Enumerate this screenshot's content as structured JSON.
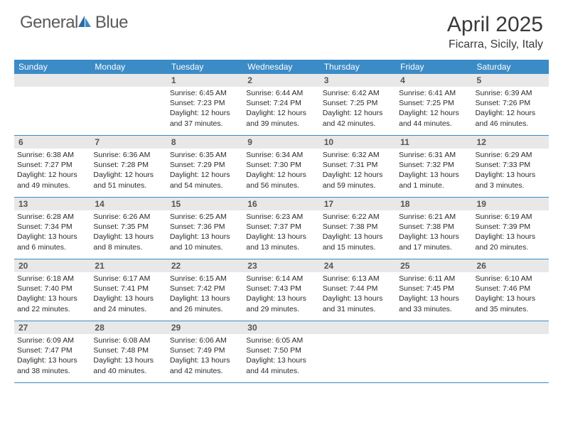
{
  "logo": {
    "text1": "General",
    "text2": "Blue"
  },
  "title": "April 2025",
  "location": "Ficarra, Sicily, Italy",
  "colors": {
    "header_bg": "#3b8bc6",
    "daynum_bg": "#e8e8e8",
    "text": "#2a2a2a",
    "logo_gray": "#5a5a5a"
  },
  "weekdays": [
    "Sunday",
    "Monday",
    "Tuesday",
    "Wednesday",
    "Thursday",
    "Friday",
    "Saturday"
  ],
  "weeks": [
    [
      {
        "empty": true
      },
      {
        "empty": true
      },
      {
        "num": "1",
        "sunrise": "Sunrise: 6:45 AM",
        "sunset": "Sunset: 7:23 PM",
        "daylight": "Daylight: 12 hours and 37 minutes."
      },
      {
        "num": "2",
        "sunrise": "Sunrise: 6:44 AM",
        "sunset": "Sunset: 7:24 PM",
        "daylight": "Daylight: 12 hours and 39 minutes."
      },
      {
        "num": "3",
        "sunrise": "Sunrise: 6:42 AM",
        "sunset": "Sunset: 7:25 PM",
        "daylight": "Daylight: 12 hours and 42 minutes."
      },
      {
        "num": "4",
        "sunrise": "Sunrise: 6:41 AM",
        "sunset": "Sunset: 7:25 PM",
        "daylight": "Daylight: 12 hours and 44 minutes."
      },
      {
        "num": "5",
        "sunrise": "Sunrise: 6:39 AM",
        "sunset": "Sunset: 7:26 PM",
        "daylight": "Daylight: 12 hours and 46 minutes."
      }
    ],
    [
      {
        "num": "6",
        "sunrise": "Sunrise: 6:38 AM",
        "sunset": "Sunset: 7:27 PM",
        "daylight": "Daylight: 12 hours and 49 minutes."
      },
      {
        "num": "7",
        "sunrise": "Sunrise: 6:36 AM",
        "sunset": "Sunset: 7:28 PM",
        "daylight": "Daylight: 12 hours and 51 minutes."
      },
      {
        "num": "8",
        "sunrise": "Sunrise: 6:35 AM",
        "sunset": "Sunset: 7:29 PM",
        "daylight": "Daylight: 12 hours and 54 minutes."
      },
      {
        "num": "9",
        "sunrise": "Sunrise: 6:34 AM",
        "sunset": "Sunset: 7:30 PM",
        "daylight": "Daylight: 12 hours and 56 minutes."
      },
      {
        "num": "10",
        "sunrise": "Sunrise: 6:32 AM",
        "sunset": "Sunset: 7:31 PM",
        "daylight": "Daylight: 12 hours and 59 minutes."
      },
      {
        "num": "11",
        "sunrise": "Sunrise: 6:31 AM",
        "sunset": "Sunset: 7:32 PM",
        "daylight": "Daylight: 13 hours and 1 minute."
      },
      {
        "num": "12",
        "sunrise": "Sunrise: 6:29 AM",
        "sunset": "Sunset: 7:33 PM",
        "daylight": "Daylight: 13 hours and 3 minutes."
      }
    ],
    [
      {
        "num": "13",
        "sunrise": "Sunrise: 6:28 AM",
        "sunset": "Sunset: 7:34 PM",
        "daylight": "Daylight: 13 hours and 6 minutes."
      },
      {
        "num": "14",
        "sunrise": "Sunrise: 6:26 AM",
        "sunset": "Sunset: 7:35 PM",
        "daylight": "Daylight: 13 hours and 8 minutes."
      },
      {
        "num": "15",
        "sunrise": "Sunrise: 6:25 AM",
        "sunset": "Sunset: 7:36 PM",
        "daylight": "Daylight: 13 hours and 10 minutes."
      },
      {
        "num": "16",
        "sunrise": "Sunrise: 6:23 AM",
        "sunset": "Sunset: 7:37 PM",
        "daylight": "Daylight: 13 hours and 13 minutes."
      },
      {
        "num": "17",
        "sunrise": "Sunrise: 6:22 AM",
        "sunset": "Sunset: 7:38 PM",
        "daylight": "Daylight: 13 hours and 15 minutes."
      },
      {
        "num": "18",
        "sunrise": "Sunrise: 6:21 AM",
        "sunset": "Sunset: 7:38 PM",
        "daylight": "Daylight: 13 hours and 17 minutes."
      },
      {
        "num": "19",
        "sunrise": "Sunrise: 6:19 AM",
        "sunset": "Sunset: 7:39 PM",
        "daylight": "Daylight: 13 hours and 20 minutes."
      }
    ],
    [
      {
        "num": "20",
        "sunrise": "Sunrise: 6:18 AM",
        "sunset": "Sunset: 7:40 PM",
        "daylight": "Daylight: 13 hours and 22 minutes."
      },
      {
        "num": "21",
        "sunrise": "Sunrise: 6:17 AM",
        "sunset": "Sunset: 7:41 PM",
        "daylight": "Daylight: 13 hours and 24 minutes."
      },
      {
        "num": "22",
        "sunrise": "Sunrise: 6:15 AM",
        "sunset": "Sunset: 7:42 PM",
        "daylight": "Daylight: 13 hours and 26 minutes."
      },
      {
        "num": "23",
        "sunrise": "Sunrise: 6:14 AM",
        "sunset": "Sunset: 7:43 PM",
        "daylight": "Daylight: 13 hours and 29 minutes."
      },
      {
        "num": "24",
        "sunrise": "Sunrise: 6:13 AM",
        "sunset": "Sunset: 7:44 PM",
        "daylight": "Daylight: 13 hours and 31 minutes."
      },
      {
        "num": "25",
        "sunrise": "Sunrise: 6:11 AM",
        "sunset": "Sunset: 7:45 PM",
        "daylight": "Daylight: 13 hours and 33 minutes."
      },
      {
        "num": "26",
        "sunrise": "Sunrise: 6:10 AM",
        "sunset": "Sunset: 7:46 PM",
        "daylight": "Daylight: 13 hours and 35 minutes."
      }
    ],
    [
      {
        "num": "27",
        "sunrise": "Sunrise: 6:09 AM",
        "sunset": "Sunset: 7:47 PM",
        "daylight": "Daylight: 13 hours and 38 minutes."
      },
      {
        "num": "28",
        "sunrise": "Sunrise: 6:08 AM",
        "sunset": "Sunset: 7:48 PM",
        "daylight": "Daylight: 13 hours and 40 minutes."
      },
      {
        "num": "29",
        "sunrise": "Sunrise: 6:06 AM",
        "sunset": "Sunset: 7:49 PM",
        "daylight": "Daylight: 13 hours and 42 minutes."
      },
      {
        "num": "30",
        "sunrise": "Sunrise: 6:05 AM",
        "sunset": "Sunset: 7:50 PM",
        "daylight": "Daylight: 13 hours and 44 minutes."
      },
      {
        "empty": true
      },
      {
        "empty": true
      },
      {
        "empty": true
      }
    ]
  ]
}
